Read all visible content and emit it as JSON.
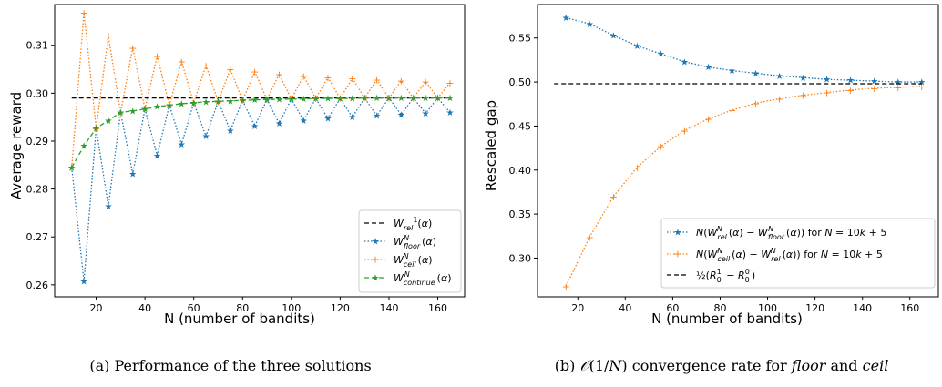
{
  "colors": {
    "blue": "#1f77b4",
    "orange": "#ff7f0e",
    "green": "#2ca02c",
    "black": "#000000"
  },
  "chart_data": [
    {
      "type": "line",
      "xlabel": "N (number of bandits)",
      "ylabel": "Average reward",
      "xlim": [
        3,
        171
      ],
      "ylim": [
        0.2575,
        0.3185
      ],
      "xticks": [
        20,
        40,
        60,
        80,
        100,
        120,
        140,
        160
      ],
      "yticks": [
        0.26,
        0.27,
        0.28,
        0.29,
        0.3,
        0.31
      ],
      "ytick_labels": [
        "0.26",
        "0.27",
        "0.28",
        "0.29",
        "0.30",
        "0.31"
      ],
      "legend_position": "lower-right",
      "caption": "(a) Performance of the three solutions",
      "series": [
        {
          "name": "W^1_rel(α)",
          "color": "#000000",
          "style": "dashed",
          "marker": "none",
          "x": [
            10,
            165
          ],
          "y": [
            0.299,
            0.299
          ]
        },
        {
          "name": "W^N_floor(α)",
          "color": "#1f77b4",
          "style": "dotted",
          "marker": "star",
          "x": [
            10,
            15,
            20,
            25,
            30,
            35,
            40,
            45,
            50,
            55,
            60,
            65,
            70,
            75,
            80,
            85,
            90,
            95,
            100,
            105,
            110,
            115,
            120,
            125,
            130,
            135,
            140,
            145,
            150,
            155,
            160,
            165
          ],
          "y": [
            0.2845,
            0.2607,
            0.2927,
            0.2764,
            0.296,
            0.2832,
            0.2967,
            0.287,
            0.2975,
            0.2893,
            0.298,
            0.291,
            0.2983,
            0.2922,
            0.2985,
            0.2931,
            0.2987,
            0.2937,
            0.2988,
            0.2943,
            0.2989,
            0.2947,
            0.2989,
            0.295,
            0.299,
            0.2953,
            0.299,
            0.2955,
            0.299,
            0.2958,
            0.299,
            0.296
          ]
        },
        {
          "name": "W^N_ceil(α)",
          "color": "#ff7f0e",
          "style": "dotted",
          "marker": "plus",
          "x": [
            10,
            15,
            20,
            25,
            30,
            35,
            40,
            45,
            50,
            55,
            60,
            65,
            70,
            75,
            80,
            85,
            90,
            95,
            100,
            105,
            110,
            115,
            120,
            125,
            130,
            135,
            140,
            145,
            150,
            155,
            160,
            165
          ],
          "y": [
            0.2845,
            0.3168,
            0.2927,
            0.312,
            0.296,
            0.3095,
            0.2967,
            0.3078,
            0.2975,
            0.3066,
            0.298,
            0.3058,
            0.2983,
            0.305,
            0.2985,
            0.3045,
            0.2987,
            0.304,
            0.2988,
            0.3036,
            0.2989,
            0.3033,
            0.2989,
            0.3031,
            0.299,
            0.3028,
            0.299,
            0.3026,
            0.299,
            0.3024,
            0.299,
            0.3022
          ]
        },
        {
          "name": "W^N_continue(α)",
          "color": "#2ca02c",
          "style": "dashed",
          "marker": "star",
          "x": [
            10,
            15,
            20,
            25,
            30,
            35,
            40,
            45,
            50,
            55,
            60,
            65,
            70,
            75,
            80,
            85,
            90,
            95,
            100,
            105,
            110,
            115,
            120,
            125,
            130,
            135,
            140,
            145,
            150,
            155,
            160,
            165
          ],
          "y": [
            0.2845,
            0.289,
            0.2927,
            0.2943,
            0.296,
            0.2963,
            0.2967,
            0.2972,
            0.2975,
            0.2978,
            0.298,
            0.2982,
            0.2983,
            0.2984,
            0.2985,
            0.2986,
            0.2987,
            0.2987,
            0.2988,
            0.2988,
            0.2989,
            0.2989,
            0.2989,
            0.2989,
            0.299,
            0.299,
            0.299,
            0.299,
            0.299,
            0.299,
            0.299,
            0.299
          ]
        }
      ]
    },
    {
      "type": "line",
      "xlabel": "N (number of bandits)",
      "ylabel": "Rescaled gap",
      "xlim": [
        3,
        172
      ],
      "ylim": [
        0.256,
        0.588
      ],
      "xticks": [
        20,
        40,
        60,
        80,
        100,
        120,
        140,
        160
      ],
      "yticks": [
        0.3,
        0.35,
        0.4,
        0.45,
        0.5,
        0.55
      ],
      "ytick_labels": [
        "0.30",
        "0.35",
        "0.40",
        "0.45",
        "0.50",
        "0.55"
      ],
      "legend_position": "lower-right",
      "caption": "(b) O(1/N) convergence rate for floor and ceil",
      "series": [
        {
          "name": "N(W^N_rel(α) − W^N_floor(α)) for N = 10k + 5",
          "color": "#1f77b4",
          "style": "dotted",
          "marker": "star",
          "x": [
            15,
            25,
            35,
            45,
            55,
            65,
            75,
            85,
            95,
            105,
            115,
            125,
            135,
            145,
            155,
            165
          ],
          "y": [
            0.573,
            0.566,
            0.553,
            0.541,
            0.532,
            0.523,
            0.517,
            0.513,
            0.51,
            0.507,
            0.505,
            0.503,
            0.502,
            0.501,
            0.5,
            0.5
          ]
        },
        {
          "name": "N(W^N_ceil(α) − W^N_rel(α)) for N = 10k + 5",
          "color": "#ff7f0e",
          "style": "dotted",
          "marker": "plus",
          "x": [
            15,
            25,
            35,
            45,
            55,
            65,
            75,
            85,
            95,
            105,
            115,
            125,
            135,
            145,
            155,
            165
          ],
          "y": [
            0.268,
            0.324,
            0.37,
            0.403,
            0.427,
            0.445,
            0.458,
            0.468,
            0.476,
            0.481,
            0.485,
            0.488,
            0.491,
            0.493,
            0.494,
            0.495
          ]
        },
        {
          "name": "½(R^1_0 − R^0_0)",
          "color": "#000000",
          "style": "dashed",
          "marker": "none",
          "x": [
            10,
            165
          ],
          "y": [
            0.498,
            0.498
          ]
        }
      ]
    }
  ]
}
